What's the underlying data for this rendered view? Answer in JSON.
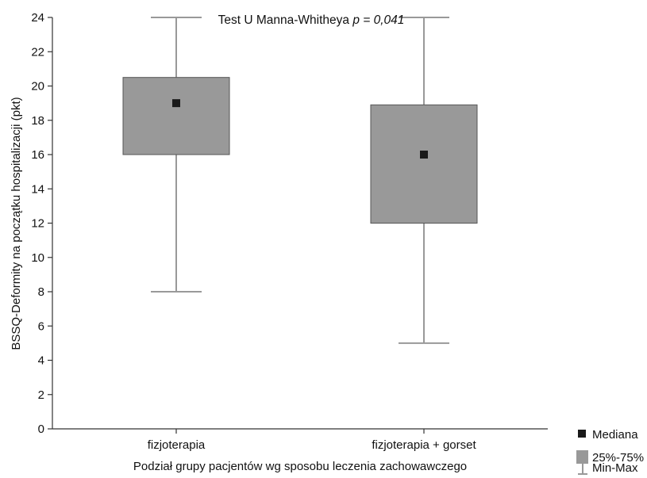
{
  "chart_data": {
    "type": "boxplot",
    "annotation": {
      "prefix": "Test U Manna-Whitheya ",
      "pvar": "p",
      "eq": " = ",
      "value": "0,041"
    },
    "xlabel": "Podział grupy pacjentów wg sposobu leczenia zachowawczego",
    "ylabel": "BSSQ-Deformity na początku hospitalizacji (pkt)",
    "ylim": [
      0,
      24
    ],
    "yticks": [
      "0",
      "2",
      "4",
      "6",
      "8",
      "10",
      "12",
      "14",
      "16",
      "18",
      "20",
      "22",
      "24"
    ],
    "categories": [
      "fizjoterapia",
      "fizjoterapia + gorset"
    ],
    "groups": [
      {
        "min": 8,
        "q1": 16,
        "median": 19,
        "q3": 20.5,
        "max": 24
      },
      {
        "min": 5,
        "q1": 12,
        "median": 16,
        "q3": 18.9,
        "max": 24
      }
    ],
    "legend": {
      "position": "bottom-right",
      "items": [
        "Mediana",
        "25%-75%",
        "Min-Max"
      ]
    },
    "colors": {
      "box": "#999999",
      "whisker": "#999999",
      "median": "#1a1a1a",
      "axis": "#333333"
    }
  }
}
